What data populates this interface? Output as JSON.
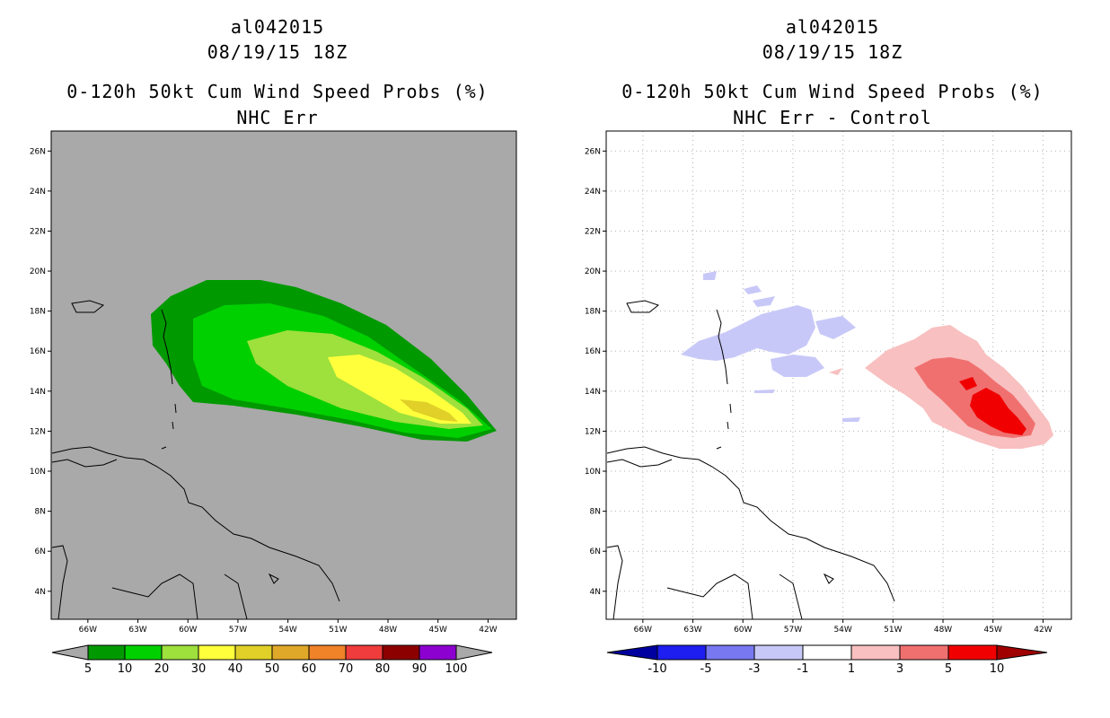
{
  "left_panel": {
    "storm_id": "al042015",
    "datetime": "08/19/15 18Z",
    "product": "0-120h 50kt Cum Wind Speed Probs (%)",
    "subtitle": "NHC Err",
    "background_color": "#a9a9a9",
    "colorbar": {
      "labels": [
        "5",
        "10",
        "20",
        "30",
        "40",
        "50",
        "60",
        "70",
        "80",
        "90",
        "100"
      ],
      "colors": [
        "#009900",
        "#00d000",
        "#9ee03c",
        "#ffff3c",
        "#e0d028",
        "#e0a828",
        "#f08228",
        "#f03c3c",
        "#8c0000",
        "#8c00d0"
      ]
    }
  },
  "right_panel": {
    "storm_id": "al042015",
    "datetime": "08/19/15 18Z",
    "product": "0-120h 50kt Cum Wind Speed Probs (%)",
    "subtitle": "NHC Err - Control",
    "background_color": "#ffffff",
    "colorbar": {
      "labels": [
        "-10",
        "-5",
        "-3",
        "-1",
        "1",
        "3",
        "5",
        "10"
      ],
      "colors": [
        "#0000a0",
        "#1e1ef0",
        "#7878f0",
        "#c8c8f8",
        "#ffffff",
        "#f8c0c0",
        "#f07070",
        "#f00000",
        "#a00000"
      ]
    }
  },
  "axes": {
    "lat_labels": [
      "26N",
      "24N",
      "22N",
      "20N",
      "18N",
      "16N",
      "14N",
      "12N",
      "10N",
      "8N",
      "6N",
      "4N"
    ],
    "lon_labels": [
      "66W",
      "63W",
      "60W",
      "57W",
      "54W",
      "51W",
      "48W",
      "45W",
      "42W"
    ],
    "lat_range": [
      2.6,
      27.0
    ],
    "lon_range": [
      -68.2,
      -40.3
    ]
  }
}
